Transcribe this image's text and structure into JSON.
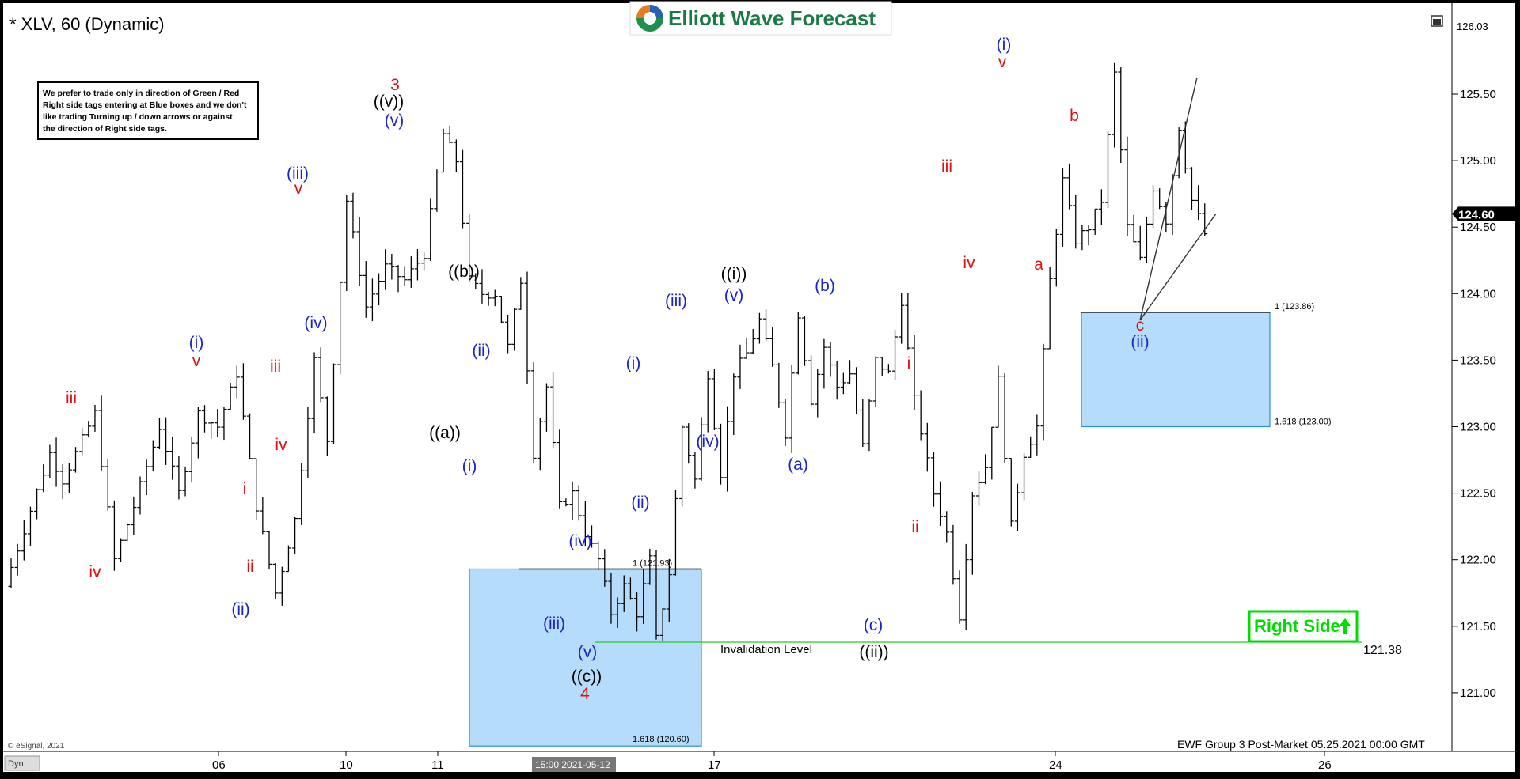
{
  "header": {
    "symbol": "* XLV, 60 (Dynamic)",
    "brand": "Elliott Wave Forecast"
  },
  "notice": {
    "line1": "We prefer to trade only in direction of Green / Red",
    "line2": "Right side tags entering at Blue boxes and we don't",
    "line3": "like trading Turning up / down arrows or against",
    "line4": "the direction of Right side tags."
  },
  "footer": {
    "copyright": "© eSignal, 2021",
    "corner": "Dyn",
    "timestamp": "EWF Group 3 Post-Market 05.25.2021 00:00 GMT",
    "cursor_time": "15:00 2021-05-12"
  },
  "price_tags": {
    "top": "126.03",
    "last": "124.60"
  },
  "right_side": {
    "label": "Right Side",
    "color": "#00dd00"
  },
  "invalidation": {
    "label": "Invalidation Level",
    "price": 121.38,
    "price_label": "121.38",
    "color": "#22cc22"
  },
  "colors": {
    "box_fill": "#b5dcfa",
    "box_stroke": "#2a8fd4",
    "red": "#e01010",
    "blue": "#1a24c8",
    "black": "#000000"
  },
  "chart_data": {
    "type": "ohlc",
    "timeframe": "60",
    "y_ticks": [
      "125.50",
      "125.00",
      "124.50",
      "124.00",
      "123.50",
      "123.00",
      "122.50",
      "122.00",
      "121.50",
      "121.00"
    ],
    "x_ticks": [
      "06",
      "10",
      "11",
      "17",
      "24",
      "26"
    ],
    "ylim": [
      120.52,
      126.05
    ],
    "blue_boxes": [
      {
        "top": 121.93,
        "bottom": 120.6,
        "label_top": "1 (121.93)",
        "label_bottom": "1.618 (120.60)"
      },
      {
        "top": 123.86,
        "bottom": 123.0,
        "label_top": "1 (123.86)",
        "label_bottom": "1.618 (123.00)"
      }
    ],
    "wave_labels": [
      {
        "text": "iii",
        "color": "red"
      },
      {
        "text": "iv",
        "color": "red"
      },
      {
        "text": "(i)",
        "color": "blue"
      },
      {
        "text": "v",
        "color": "red"
      },
      {
        "text": "i",
        "color": "red"
      },
      {
        "text": "ii",
        "color": "red"
      },
      {
        "text": "(ii)",
        "color": "blue"
      },
      {
        "text": "iii",
        "color": "red"
      },
      {
        "text": "iv",
        "color": "red"
      },
      {
        "text": "(iii)",
        "color": "blue"
      },
      {
        "text": "v",
        "color": "red"
      },
      {
        "text": "(iv)",
        "color": "blue"
      },
      {
        "text": "3",
        "color": "red"
      },
      {
        "text": "((v))",
        "color": "black"
      },
      {
        "text": "(v)",
        "color": "blue"
      },
      {
        "text": "((b))",
        "color": "black"
      },
      {
        "text": "((a))",
        "color": "black"
      },
      {
        "text": "(ii)",
        "color": "blue"
      },
      {
        "text": "(i)",
        "color": "blue"
      },
      {
        "text": "(iv)",
        "color": "blue"
      },
      {
        "text": "(iii)",
        "color": "blue"
      },
      {
        "text": "(v)",
        "color": "blue"
      },
      {
        "text": "((c))",
        "color": "black"
      },
      {
        "text": "4",
        "color": "red"
      },
      {
        "text": "(i)",
        "color": "blue"
      },
      {
        "text": "(ii)",
        "color": "blue"
      },
      {
        "text": "(iii)",
        "color": "blue"
      },
      {
        "text": "((i))",
        "color": "black"
      },
      {
        "text": "(v)",
        "color": "blue"
      },
      {
        "text": "(iv)",
        "color": "blue"
      },
      {
        "text": "(b)",
        "color": "blue"
      },
      {
        "text": "(a)",
        "color": "blue"
      },
      {
        "text": "(c)",
        "color": "blue"
      },
      {
        "text": "((ii))",
        "color": "black"
      },
      {
        "text": "i",
        "color": "red"
      },
      {
        "text": "ii",
        "color": "red"
      },
      {
        "text": "iii",
        "color": "red"
      },
      {
        "text": "iv",
        "color": "red"
      },
      {
        "text": "(i)",
        "color": "blue"
      },
      {
        "text": "v",
        "color": "red"
      },
      {
        "text": "b",
        "color": "red"
      },
      {
        "text": "a",
        "color": "red"
      },
      {
        "text": "c",
        "color": "red"
      },
      {
        "text": "(ii)",
        "color": "blue"
      }
    ],
    "swings": [
      [
        0,
        121.8
      ],
      [
        7,
        122.8
      ],
      [
        9,
        122.6
      ],
      [
        12,
        122.9
      ],
      [
        14,
        123.1
      ],
      [
        17,
        122.0
      ],
      [
        20,
        122.4
      ],
      [
        24,
        123.0
      ],
      [
        27,
        122.5
      ],
      [
        30,
        123.1
      ],
      [
        33,
        123.0
      ],
      [
        36,
        123.4
      ],
      [
        39,
        122.4
      ],
      [
        42,
        121.75
      ],
      [
        45,
        122.3
      ],
      [
        48,
        123.5
      ],
      [
        50,
        122.9
      ],
      [
        53,
        124.7
      ],
      [
        56,
        123.9
      ],
      [
        59,
        124.2
      ],
      [
        62,
        124.1
      ],
      [
        65,
        124.3
      ],
      [
        68,
        125.2
      ],
      [
        70,
        125.0
      ],
      [
        72,
        124.1
      ],
      [
        74,
        124.0
      ],
      [
        76,
        124.0
      ],
      [
        78,
        123.6
      ],
      [
        80,
        124.1
      ],
      [
        82,
        122.8
      ],
      [
        84,
        123.3
      ],
      [
        86,
        122.4
      ],
      [
        88,
        122.5
      ],
      [
        90,
        122.2
      ],
      [
        92,
        122.0
      ],
      [
        94,
        121.6
      ],
      [
        96,
        121.8
      ],
      [
        98,
        121.6
      ],
      [
        100,
        122.0
      ],
      [
        101,
        121.4
      ],
      [
        103,
        121.9
      ],
      [
        105,
        123.0
      ],
      [
        107,
        122.6
      ],
      [
        109,
        123.4
      ],
      [
        111,
        122.65
      ],
      [
        113,
        123.4
      ],
      [
        115,
        123.55
      ],
      [
        117,
        123.8
      ],
      [
        119,
        123.45
      ],
      [
        121,
        122.95
      ],
      [
        123,
        123.85
      ],
      [
        125,
        123.2
      ],
      [
        127,
        123.6
      ],
      [
        129,
        123.3
      ],
      [
        131,
        123.4
      ],
      [
        133,
        122.85
      ],
      [
        135,
        123.5
      ],
      [
        137,
        123.4
      ],
      [
        139,
        123.95
      ],
      [
        141,
        123.2
      ],
      [
        144,
        122.5
      ],
      [
        146,
        122.2
      ],
      [
        148,
        121.58
      ],
      [
        150,
        122.5
      ],
      [
        152,
        122.7
      ],
      [
        154,
        123.35
      ],
      [
        156,
        122.25
      ],
      [
        158,
        122.8
      ],
      [
        160,
        123.0
      ],
      [
        162,
        124.1
      ],
      [
        164,
        124.85
      ],
      [
        166,
        124.4
      ],
      [
        168,
        124.5
      ],
      [
        170,
        124.7
      ],
      [
        172,
        125.65
      ],
      [
        174,
        124.5
      ],
      [
        176,
        124.25
      ],
      [
        178,
        124.8
      ],
      [
        180,
        124.55
      ],
      [
        182,
        125.25
      ],
      [
        184,
        124.7
      ],
      [
        186,
        124.45
      ]
    ]
  }
}
